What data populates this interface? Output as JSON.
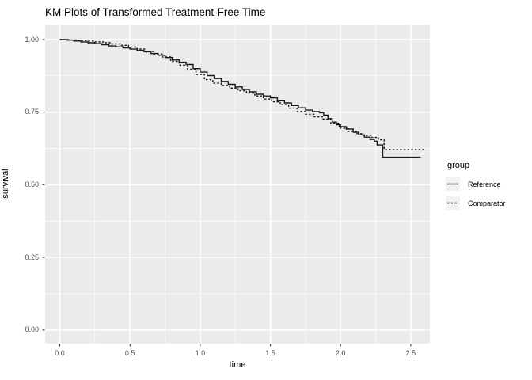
{
  "colors": {
    "background": "#FFFFFF",
    "panel": "#EBEBEB",
    "grid_major": "#FFFFFF",
    "grid_minor": "#FFFFFF",
    "line": "#1A1A1A",
    "tick_mark": "#333333",
    "tick_label": "#4D4D4D",
    "text": "#000000",
    "legend_key": "#F2F2F2"
  },
  "legend": {
    "title": "group",
    "position": "right",
    "items": [
      {
        "label": "Reference",
        "linetype": "solid"
      },
      {
        "label": "Comparator",
        "linetype": "dashed"
      }
    ]
  },
  "chart_data": {
    "type": "line",
    "subtype": "kaplan-meier-step",
    "title": "KM Plots of Transformed Treatment-Free Time",
    "xlabel": "time",
    "ylabel": "survival",
    "xlim": [
      0,
      2.6
    ],
    "ylim": [
      0,
      1
    ],
    "panel_xlim": [
      -0.1043,
      2.6357
    ],
    "panel_ylim": [
      -0.0469,
      1.0518
    ],
    "grid": true,
    "legend_position": "right",
    "x_ticks": [
      {
        "v": 0.0,
        "label": "0.0"
      },
      {
        "v": 0.5,
        "label": "0.5"
      },
      {
        "v": 1.0,
        "label": "1.0"
      },
      {
        "v": 1.5,
        "label": "1.5"
      },
      {
        "v": 2.0,
        "label": "2.0"
      },
      {
        "v": 2.5,
        "label": "2.5"
      }
    ],
    "y_ticks": [
      {
        "v": 0.0,
        "label": "0.00"
      },
      {
        "v": 0.25,
        "label": "0.25"
      },
      {
        "v": 0.5,
        "label": "0.50"
      },
      {
        "v": 0.75,
        "label": "0.75"
      },
      {
        "v": 1.0,
        "label": "1.00"
      }
    ],
    "x_minor": [
      0.25,
      0.75,
      1.25,
      1.75,
      2.25
    ],
    "y_minor": [
      0.125,
      0.375,
      0.625,
      0.875
    ],
    "series": [
      {
        "name": "Reference",
        "linetype": "solid",
        "points": [
          [
            0,
            1
          ],
          [
            0.05,
            0.998
          ],
          [
            0.1,
            0.995
          ],
          [
            0.15,
            0.992
          ],
          [
            0.2,
            0.989
          ],
          [
            0.25,
            0.986
          ],
          [
            0.3,
            0.982
          ],
          [
            0.35,
            0.978
          ],
          [
            0.4,
            0.975
          ],
          [
            0.45,
            0.971
          ],
          [
            0.5,
            0.967
          ],
          [
            0.55,
            0.963
          ],
          [
            0.6,
            0.958
          ],
          [
            0.65,
            0.952
          ],
          [
            0.7,
            0.946
          ],
          [
            0.75,
            0.938
          ],
          [
            0.8,
            0.93
          ],
          [
            0.85,
            0.922
          ],
          [
            0.9,
            0.914
          ],
          [
            0.95,
            0.9
          ],
          [
            1,
            0.888
          ],
          [
            1.05,
            0.876
          ],
          [
            1.1,
            0.866
          ],
          [
            1.15,
            0.856
          ],
          [
            1.2,
            0.846
          ],
          [
            1.25,
            0.837
          ],
          [
            1.3,
            0.828
          ],
          [
            1.35,
            0.82
          ],
          [
            1.4,
            0.812
          ],
          [
            1.45,
            0.806
          ],
          [
            1.5,
            0.799
          ],
          [
            1.55,
            0.791
          ],
          [
            1.6,
            0.782
          ],
          [
            1.65,
            0.773
          ],
          [
            1.7,
            0.765
          ],
          [
            1.75,
            0.757
          ],
          [
            1.8,
            0.752
          ],
          [
            1.85,
            0.748
          ],
          [
            1.88,
            0.74
          ],
          [
            1.91,
            0.728
          ],
          [
            1.94,
            0.716
          ],
          [
            1.97,
            0.707
          ],
          [
            2,
            0.7
          ],
          [
            2.04,
            0.692
          ],
          [
            2.09,
            0.681
          ],
          [
            2.13,
            0.672
          ],
          [
            2.17,
            0.664
          ],
          [
            2.21,
            0.656
          ],
          [
            2.24,
            0.65
          ],
          [
            2.26,
            0.637
          ],
          [
            2.3,
            0.595
          ],
          [
            2.57,
            0.595
          ]
        ]
      },
      {
        "name": "Comparator",
        "linetype": "dashed",
        "points": [
          [
            0,
            1
          ],
          [
            0.07,
            0.999
          ],
          [
            0.13,
            0.997
          ],
          [
            0.19,
            0.995
          ],
          [
            0.25,
            0.992
          ],
          [
            0.31,
            0.989
          ],
          [
            0.37,
            0.985
          ],
          [
            0.43,
            0.98
          ],
          [
            0.49,
            0.974
          ],
          [
            0.55,
            0.967
          ],
          [
            0.61,
            0.959
          ],
          [
            0.67,
            0.95
          ],
          [
            0.73,
            0.94
          ],
          [
            0.79,
            0.925
          ],
          [
            0.85,
            0.912
          ],
          [
            0.91,
            0.898
          ],
          [
            0.97,
            0.88
          ],
          [
            1.03,
            0.862
          ],
          [
            1.09,
            0.85
          ],
          [
            1.15,
            0.842
          ],
          [
            1.21,
            0.833
          ],
          [
            1.27,
            0.824
          ],
          [
            1.33,
            0.816
          ],
          [
            1.39,
            0.806
          ],
          [
            1.45,
            0.795
          ],
          [
            1.51,
            0.786
          ],
          [
            1.57,
            0.776
          ],
          [
            1.63,
            0.764
          ],
          [
            1.69,
            0.752
          ],
          [
            1.75,
            0.743
          ],
          [
            1.81,
            0.734
          ],
          [
            1.87,
            0.726
          ],
          [
            1.93,
            0.712
          ],
          [
            1.99,
            0.695
          ],
          [
            2.05,
            0.684
          ],
          [
            2.11,
            0.676
          ],
          [
            2.16,
            0.67
          ],
          [
            2.22,
            0.663
          ],
          [
            2.27,
            0.655
          ],
          [
            2.31,
            0.621
          ],
          [
            2.6,
            0.621
          ]
        ]
      }
    ]
  }
}
